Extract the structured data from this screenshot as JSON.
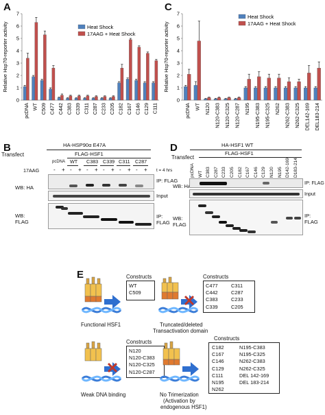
{
  "panels": {
    "a": "A",
    "b": "B",
    "c": "C",
    "d": "D",
    "e": "E"
  },
  "colors": {
    "heat_shock": "#4f81bd",
    "aag_heat_shock": "#c0504d"
  },
  "chart_data": [
    {
      "type": "bar",
      "ylabel": "Relative Hsp70-reporter activity",
      "ylim": [
        0,
        7
      ],
      "yticks": [
        0,
        1,
        2,
        3,
        4,
        5,
        6,
        7
      ],
      "categories": [
        "pcDNA",
        "WT",
        "C509",
        "C477",
        "C442",
        "C383",
        "C339",
        "C311",
        "C287",
        "C233",
        "C205",
        "C182",
        "C167",
        "C146",
        "C129",
        "C111"
      ],
      "series": [
        {
          "name": "Heat Shock",
          "color": "#4f81bd",
          "values": [
            1.1,
            1.9,
            1.6,
            0.9,
            0.2,
            0.15,
            0.15,
            0.15,
            0.15,
            0.15,
            0.15,
            1.4,
            1.7,
            1.6,
            1.4,
            1.4
          ],
          "errors": [
            0.1,
            0.1,
            0.1,
            0.1,
            0.05,
            0.05,
            0.05,
            0.05,
            0.05,
            0.05,
            0.05,
            0.1,
            0.1,
            0.1,
            0.1,
            0.1
          ]
        },
        {
          "name": "17AAG + Heat Shock",
          "color": "#c0504d",
          "values": [
            3.4,
            6.3,
            5.3,
            2.6,
            0.4,
            0.35,
            0.35,
            0.35,
            0.3,
            0.3,
            0.3,
            2.6,
            4.9,
            4.3,
            3.8,
            3.2
          ],
          "errors": [
            0.4,
            0.4,
            0.3,
            0.2,
            0.1,
            0.05,
            0.05,
            0.05,
            0.05,
            0.05,
            0.05,
            0.3,
            0.1,
            0.1,
            0.1,
            0.1
          ]
        }
      ]
    },
    {
      "type": "bar",
      "ylabel": "Relative Hsp70-reporter activity",
      "ylim": [
        0,
        7
      ],
      "yticks": [
        0,
        1,
        2,
        3,
        4,
        5,
        6,
        7
      ],
      "categories": [
        "pcDNA",
        "WT",
        "N120",
        "N120-C383",
        "N120-C325",
        "N120-C287",
        "N195",
        "N195-C383",
        "N195-C325",
        "N262",
        "N262-C383",
        "N262-C325",
        "DEL142-169",
        "DEL183-214"
      ],
      "series": [
        {
          "name": "Heat Shock",
          "color": "#4f81bd",
          "values": [
            1.1,
            1.2,
            0.1,
            0.1,
            0.1,
            0.1,
            1.0,
            1.0,
            1.0,
            1.0,
            1.0,
            1.0,
            1.0,
            1.0
          ],
          "errors": [
            0.1,
            0.3,
            0.05,
            0.05,
            0.05,
            0.05,
            0.1,
            0.1,
            0.1,
            0.1,
            0.1,
            0.1,
            0.1,
            0.1
          ]
        },
        {
          "name": "17AAG + Heat Shock",
          "color": "#c0504d",
          "values": [
            2.1,
            4.8,
            0.2,
            0.2,
            0.2,
            0.2,
            1.7,
            1.9,
            1.8,
            1.8,
            1.5,
            1.5,
            2.2,
            2.6
          ],
          "errors": [
            0.4,
            1.6,
            0.05,
            0.05,
            0.05,
            0.05,
            0.4,
            0.4,
            0.3,
            0.3,
            0.3,
            0.2,
            0.6,
            0.5
          ]
        }
      ]
    }
  ],
  "panel_b": {
    "transfect": "Transfect",
    "construct": "HA-HSP90α E47A",
    "flag": "FLAG-HSF1",
    "lanes": [
      "pcDNA",
      "WT",
      "C383",
      "C339",
      "C311",
      "C287"
    ],
    "aag": "17AAG",
    "signs": [
      "-",
      "+",
      "-",
      "+",
      "-",
      "+",
      "-",
      "+",
      "-",
      "+",
      "-",
      "+"
    ],
    "time": "t = 4 hrs",
    "wb_ha": "WB: HA",
    "wb_flag_1": "WB:",
    "wb_flag_2": "FLAG",
    "ip_flag": "IP: FLAG",
    "input": "Input",
    "ip_1": "IP:",
    "ip_2": "FLAG"
  },
  "panel_d": {
    "transfect": "Transfect",
    "construct": "HA-HSF1 WT",
    "flag": "FLAG-HSF1",
    "lanes": [
      "pcDNA",
      "WT",
      "C383",
      "C287",
      "C233",
      "C205",
      "C182",
      "C167",
      "C146",
      "C129",
      "N120",
      "N195",
      "D142-169",
      "D183-214"
    ],
    "wb_ha": "WB: HA",
    "wb_flag_1": "WB:",
    "wb_flag_2": "FLAG",
    "ip_flag": "IP: FLAG",
    "input": "Input",
    "ip_1": "IP:",
    "ip_2": "FLAG"
  },
  "panel_e": {
    "functional": "Functional HSF1",
    "truncated_1": "Truncated/deleted",
    "truncated_2": "Transactivation domain",
    "weak": "Weak DNA binding",
    "notrim_1": "No Trimerization",
    "notrim_2": "(Activation by",
    "notrim_3": "endogenous HSF1)",
    "constructs": "Constructs",
    "box1": [
      "WT",
      "C509"
    ],
    "box2_col1": [
      "C477",
      "C442",
      "C383",
      "C339"
    ],
    "box2_col2": [
      "C311",
      "C287",
      "C233",
      "C205"
    ],
    "box3": [
      "N120",
      "N120-C383",
      "N120-C325",
      "N120-C287"
    ],
    "box4_col1": [
      "C182",
      "C167",
      "C146",
      "C129",
      "C111",
      "N195",
      "N262"
    ],
    "box4_col2": [
      "N195-C383",
      "N195-C325",
      "N262-C383",
      "N262-C325",
      "DEL 142-169",
      "DEL 183-214"
    ]
  }
}
